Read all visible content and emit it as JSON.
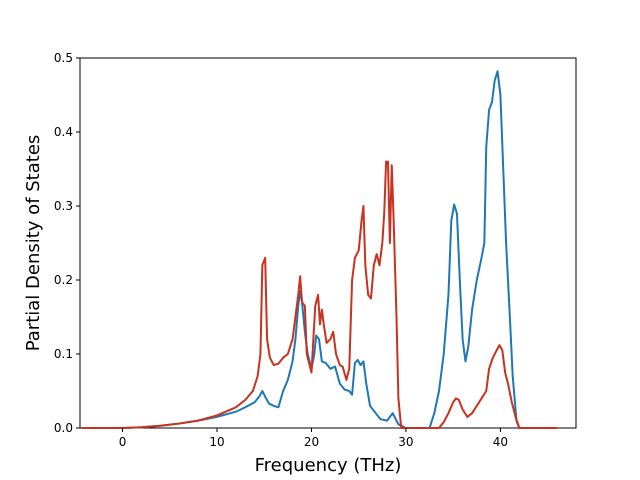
{
  "chart_data": {
    "type": "line",
    "title": "",
    "xlabel": "Frequency (THz)",
    "ylabel": "Partial Density of States",
    "xlim": [
      -4.5,
      48
    ],
    "ylim": [
      0,
      0.5
    ],
    "xticks": [
      0,
      10,
      20,
      30,
      40
    ],
    "yticks": [
      0.0,
      0.1,
      0.2,
      0.3,
      0.4,
      0.5
    ],
    "grid": false,
    "legend": false,
    "series": [
      {
        "color": "#1f77b4",
        "points": [
          [
            -4.3,
            0.0
          ],
          [
            0,
            0.0
          ],
          [
            2,
            0.001
          ],
          [
            4,
            0.003
          ],
          [
            6,
            0.006
          ],
          [
            8,
            0.01
          ],
          [
            10,
            0.015
          ],
          [
            12,
            0.022
          ],
          [
            13,
            0.028
          ],
          [
            14,
            0.035
          ],
          [
            14.5,
            0.043
          ],
          [
            14.8,
            0.05
          ],
          [
            15.2,
            0.04
          ],
          [
            15.5,
            0.033
          ],
          [
            16,
            0.03
          ],
          [
            16.5,
            0.028
          ],
          [
            17,
            0.05
          ],
          [
            17.5,
            0.065
          ],
          [
            18,
            0.09
          ],
          [
            18.3,
            0.12
          ],
          [
            18.6,
            0.165
          ],
          [
            18.8,
            0.185
          ],
          [
            19,
            0.17
          ],
          [
            19.3,
            0.13
          ],
          [
            19.6,
            0.1
          ],
          [
            20,
            0.08
          ],
          [
            20.3,
            0.1
          ],
          [
            20.5,
            0.125
          ],
          [
            20.8,
            0.12
          ],
          [
            21.1,
            0.09
          ],
          [
            21.5,
            0.088
          ],
          [
            22,
            0.08
          ],
          [
            22.5,
            0.083
          ],
          [
            23,
            0.06
          ],
          [
            23.5,
            0.052
          ],
          [
            24,
            0.05
          ],
          [
            24.3,
            0.045
          ],
          [
            24.6,
            0.088
          ],
          [
            24.9,
            0.092
          ],
          [
            25.2,
            0.085
          ],
          [
            25.5,
            0.09
          ],
          [
            25.8,
            0.06
          ],
          [
            26.2,
            0.03
          ],
          [
            26.8,
            0.02
          ],
          [
            27.3,
            0.012
          ],
          [
            28,
            0.01
          ],
          [
            28.6,
            0.02
          ],
          [
            29.2,
            0.005
          ],
          [
            30,
            0.0
          ],
          [
            32.5,
            0.0
          ],
          [
            33,
            0.02
          ],
          [
            33.5,
            0.05
          ],
          [
            34,
            0.1
          ],
          [
            34.5,
            0.18
          ],
          [
            34.8,
            0.28
          ],
          [
            35.1,
            0.302
          ],
          [
            35.4,
            0.29
          ],
          [
            35.7,
            0.2
          ],
          [
            36,
            0.12
          ],
          [
            36.3,
            0.09
          ],
          [
            36.6,
            0.11
          ],
          [
            37,
            0.16
          ],
          [
            37.5,
            0.2
          ],
          [
            38,
            0.23
          ],
          [
            38.3,
            0.25
          ],
          [
            38.5,
            0.38
          ],
          [
            38.8,
            0.43
          ],
          [
            39.1,
            0.44
          ],
          [
            39.4,
            0.47
          ],
          [
            39.7,
            0.482
          ],
          [
            40,
            0.45
          ],
          [
            40.3,
            0.35
          ],
          [
            40.6,
            0.25
          ],
          [
            41,
            0.15
          ],
          [
            41.3,
            0.07
          ],
          [
            41.7,
            0.01
          ],
          [
            42,
            0.0
          ],
          [
            46,
            0.0
          ]
        ]
      },
      {
        "color": "#c8321f",
        "points": [
          [
            -4.3,
            0.0
          ],
          [
            0,
            0.0
          ],
          [
            2,
            0.001
          ],
          [
            4,
            0.003
          ],
          [
            6,
            0.006
          ],
          [
            8,
            0.01
          ],
          [
            10,
            0.017
          ],
          [
            12,
            0.028
          ],
          [
            13,
            0.038
          ],
          [
            13.8,
            0.05
          ],
          [
            14.3,
            0.07
          ],
          [
            14.6,
            0.1
          ],
          [
            14.8,
            0.22
          ],
          [
            15.1,
            0.23
          ],
          [
            15.3,
            0.12
          ],
          [
            15.6,
            0.095
          ],
          [
            16,
            0.085
          ],
          [
            16.5,
            0.087
          ],
          [
            17,
            0.095
          ],
          [
            17.5,
            0.1
          ],
          [
            18,
            0.12
          ],
          [
            18.3,
            0.15
          ],
          [
            18.6,
            0.18
          ],
          [
            18.8,
            0.205
          ],
          [
            19,
            0.17
          ],
          [
            19.3,
            0.165
          ],
          [
            19.5,
            0.1
          ],
          [
            19.8,
            0.085
          ],
          [
            20,
            0.075
          ],
          [
            20.2,
            0.12
          ],
          [
            20.4,
            0.165
          ],
          [
            20.7,
            0.18
          ],
          [
            20.9,
            0.14
          ],
          [
            21.1,
            0.16
          ],
          [
            21.3,
            0.14
          ],
          [
            21.6,
            0.115
          ],
          [
            22,
            0.12
          ],
          [
            22.3,
            0.13
          ],
          [
            22.6,
            0.1
          ],
          [
            23,
            0.085
          ],
          [
            23.3,
            0.083
          ],
          [
            23.7,
            0.065
          ],
          [
            24,
            0.08
          ],
          [
            24.3,
            0.2
          ],
          [
            24.6,
            0.23
          ],
          [
            25,
            0.24
          ],
          [
            25.3,
            0.28
          ],
          [
            25.5,
            0.3
          ],
          [
            25.7,
            0.22
          ],
          [
            26,
            0.18
          ],
          [
            26.3,
            0.175
          ],
          [
            26.6,
            0.22
          ],
          [
            26.9,
            0.235
          ],
          [
            27.2,
            0.22
          ],
          [
            27.5,
            0.25
          ],
          [
            27.7,
            0.29
          ],
          [
            27.9,
            0.36
          ],
          [
            28.1,
            0.36
          ],
          [
            28.3,
            0.25
          ],
          [
            28.5,
            0.355
          ],
          [
            28.7,
            0.28
          ],
          [
            29,
            0.15
          ],
          [
            29.2,
            0.04
          ],
          [
            29.5,
            0.0
          ],
          [
            33.5,
            0.0
          ],
          [
            34,
            0.008
          ],
          [
            34.5,
            0.02
          ],
          [
            35,
            0.035
          ],
          [
            35.3,
            0.04
          ],
          [
            35.6,
            0.038
          ],
          [
            36,
            0.025
          ],
          [
            36.5,
            0.015
          ],
          [
            37,
            0.02
          ],
          [
            37.5,
            0.03
          ],
          [
            38,
            0.04
          ],
          [
            38.5,
            0.05
          ],
          [
            38.8,
            0.08
          ],
          [
            39.2,
            0.095
          ],
          [
            39.6,
            0.105
          ],
          [
            39.9,
            0.112
          ],
          [
            40.2,
            0.105
          ],
          [
            40.5,
            0.075
          ],
          [
            40.8,
            0.06
          ],
          [
            41.2,
            0.035
          ],
          [
            41.6,
            0.015
          ],
          [
            42,
            0.0
          ],
          [
            46,
            0.0
          ]
        ]
      }
    ]
  }
}
